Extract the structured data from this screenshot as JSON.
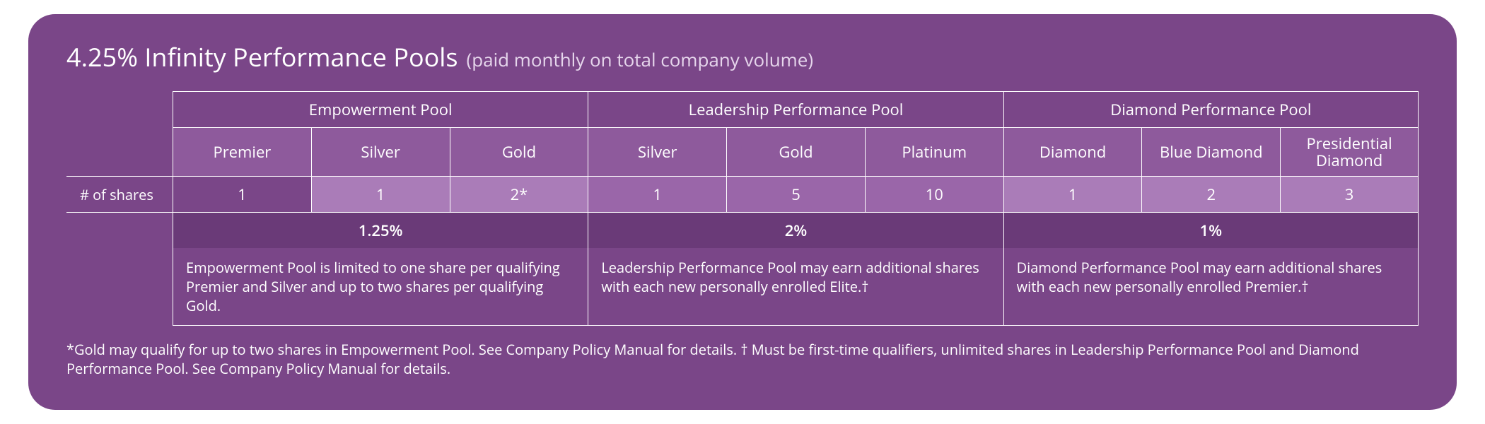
{
  "title": {
    "main": "4.25% Infinity Performance Pools",
    "sub": "(paid monthly on total company volume)"
  },
  "row_label_shares": "# of shares",
  "pools": [
    {
      "name": "Empowerment Pool",
      "tiers": [
        "Premier",
        "Silver",
        "Gold"
      ],
      "shares": [
        "1",
        "1",
        "2*"
      ],
      "percent": "1.25%",
      "note": "Empowerment Pool is limited to one share per qualifying Premier and Silver and up to two shares per qualifying Gold."
    },
    {
      "name": "Leadership Performance Pool",
      "tiers": [
        "Silver",
        "Gold",
        "Platinum"
      ],
      "shares": [
        "1",
        "5",
        "10"
      ],
      "percent": "2%",
      "note": "Leadership Performance Pool may earn additional shares with each new personally enrolled Elite.†"
    },
    {
      "name": "Diamond Performance Pool",
      "tiers": [
        "Diamond",
        "Blue Diamond",
        "Presidential Diamond"
      ],
      "shares": [
        "1",
        "2",
        "3"
      ],
      "percent": "1%",
      "note": "Diamond Performance Pool may earn additional shares with each new personally enrolled  Premier.†"
    }
  ],
  "footnote": "*Gold may qualify for up to two shares in Empowerment Pool. See Company Policy Manual for details. † Must be first-time qualifiers, unlimited shares in Leadership Performance Pool and Diamond Performance Pool. See Company Policy Manual for details.",
  "colors": {
    "card_bg": "#7a4688",
    "tier_bg": "#8e5a9c",
    "shares_light": "#aa7cb8",
    "shares_mid": "#9a66a9",
    "pct_bg": "#6a3a78",
    "border": "#ffffff",
    "text": "#ffffff",
    "subtext": "#e6d6ec"
  }
}
